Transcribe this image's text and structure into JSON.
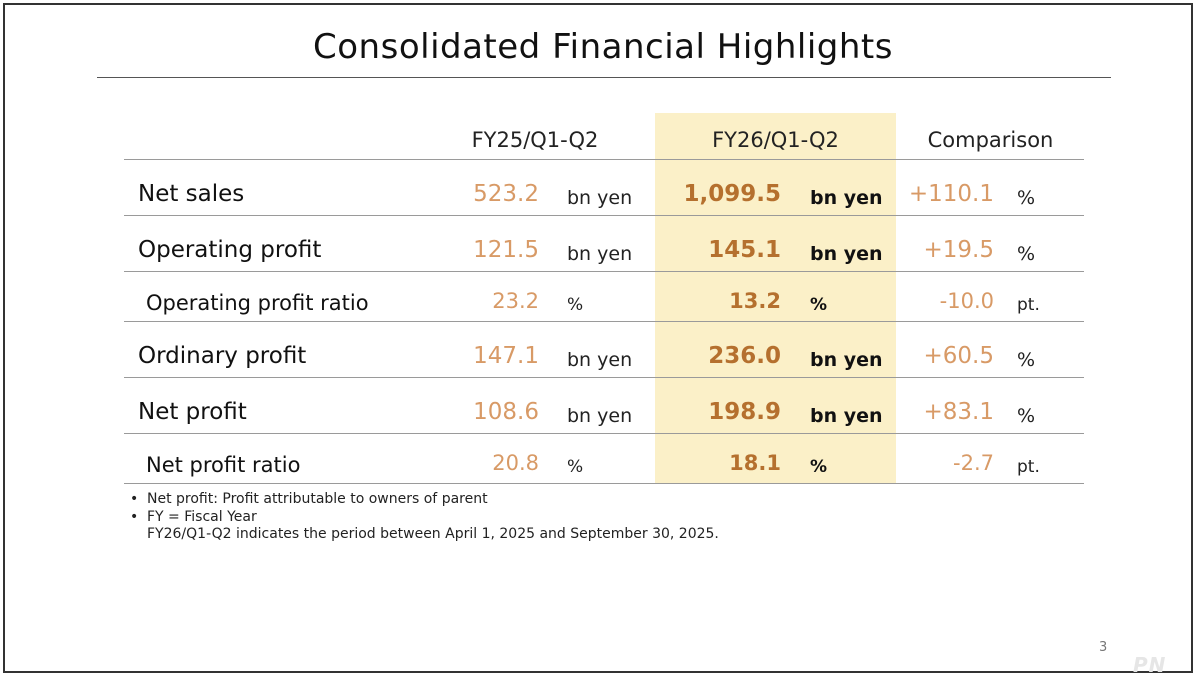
{
  "title": "Consolidated Financial Highlights",
  "columns": {
    "prev": "FY25/Q1-Q2",
    "cur": "FY26/Q1-Q2",
    "cmp": "Comparison"
  },
  "rows": [
    {
      "label": "Net sales",
      "prev": "523.2",
      "prev_unit": "bn yen",
      "cur": "1,099.5",
      "cur_unit": "bn yen",
      "cmp": "+110.1",
      "cmp_unit": "%"
    },
    {
      "label": "Operating profit",
      "prev": "121.5",
      "prev_unit": "bn yen",
      "cur": "145.1",
      "cur_unit": "bn yen",
      "cmp": "+19.5",
      "cmp_unit": "%"
    },
    {
      "label": "Operating profit ratio",
      "prev": "23.2",
      "prev_unit": "%",
      "cur": "13.2",
      "cur_unit": "%",
      "cmp": "-10.0",
      "cmp_unit": "pt."
    },
    {
      "label": "Ordinary profit",
      "prev": "147.1",
      "prev_unit": "bn yen",
      "cur": "236.0",
      "cur_unit": "bn yen",
      "cmp": "+60.5",
      "cmp_unit": "%"
    },
    {
      "label": "Net profit",
      "prev": "108.6",
      "prev_unit": "bn yen",
      "cur": "198.9",
      "cur_unit": "bn yen",
      "cmp": "+83.1",
      "cmp_unit": "%"
    },
    {
      "label": "Net profit ratio",
      "prev": "20.8",
      "prev_unit": "%",
      "cur": "18.1",
      "cur_unit": "%",
      "cmp": "-2.7",
      "cmp_unit": "pt."
    }
  ],
  "notes": {
    "bullet": "•",
    "note1": "Net profit: Profit attributable to owners of parent",
    "note2": "FY = Fiscal Year",
    "note3": "FY26/Q1-Q2 indicates the period between April 1, 2025 and September 30, 2025."
  },
  "page_number": "3",
  "watermark": "PN",
  "colors": {
    "highlight_bg": "#fbf0c8",
    "prev_value": "#d89a66",
    "cur_value": "#b5702e"
  }
}
